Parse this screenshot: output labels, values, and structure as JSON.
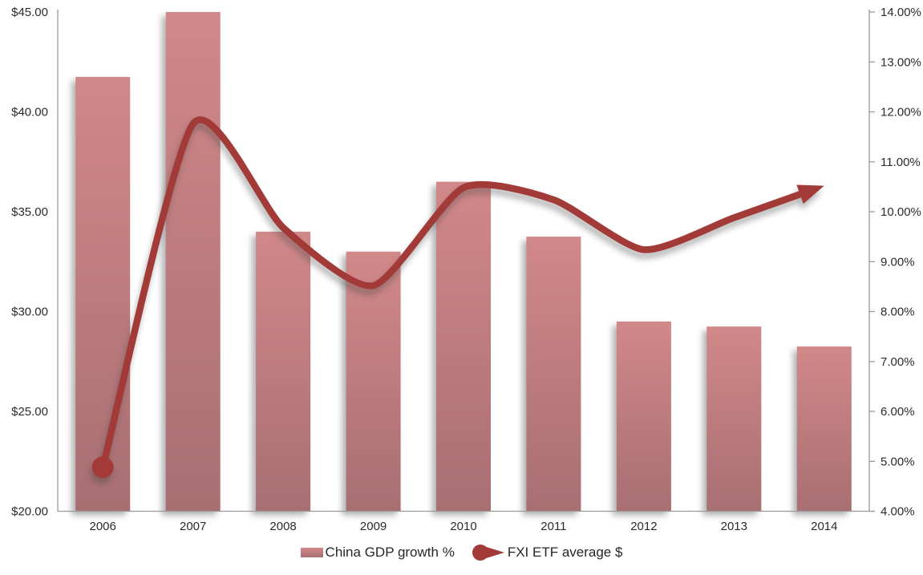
{
  "chart_data": {
    "type": "combo",
    "title": "",
    "categories": [
      "2006",
      "2007",
      "2008",
      "2009",
      "2010",
      "2011",
      "2012",
      "2013",
      "2014"
    ],
    "series": [
      {
        "name": "China GDP growth %",
        "type": "bar",
        "axis": "right",
        "unit": "%",
        "values": [
          12.7,
          14.0,
          9.6,
          9.2,
          10.6,
          9.5,
          7.8,
          7.7,
          7.3
        ],
        "bar_color_top": "#d18889",
        "bar_color_bottom": "#a86f72"
      },
      {
        "name": "FXI ETF average $",
        "type": "smooth-line",
        "axis": "left",
        "unit": "$",
        "values": [
          22.2,
          39.4,
          34.2,
          31.3,
          36.2,
          35.6,
          33.1,
          34.7,
          36.3
        ],
        "color": "#a23b38",
        "start_marker": "dot",
        "end_marker": "arrow"
      }
    ],
    "left_axis": {
      "min": 20,
      "max": 45,
      "step": 5,
      "tick_labels": [
        "$45.00",
        "$40.00",
        "$35.00",
        "$30.00",
        "$25.00",
        "$20.00"
      ]
    },
    "right_axis": {
      "min": 4,
      "max": 14,
      "step": 1,
      "tick_labels": [
        "14.00%",
        "13.00%",
        "12.00%",
        "11.00%",
        "10.00%",
        "9.00%",
        "8.00%",
        "7.00%",
        "6.00%",
        "5.00%",
        "4.00%"
      ]
    },
    "legend": {
      "position": "bottom",
      "items": [
        "China GDP growth %",
        "FXI ETF average $"
      ]
    },
    "grid": false,
    "axis_color": "#9a9a9a",
    "label_color": "#2b2b2b"
  }
}
